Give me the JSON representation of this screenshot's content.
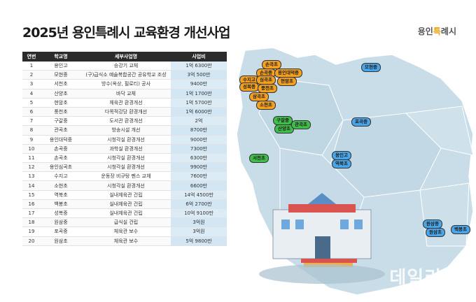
{
  "title": "2025년 용인특례시 교육환경 개선사업",
  "logo": {
    "part1": "용인",
    "part2": "특",
    "part3": "례시"
  },
  "table": {
    "headers": [
      "연번",
      "학교명",
      "세부사업명",
      "사업비"
    ],
    "rows": [
      [
        "1",
        "용인고",
        "승강기 교체",
        "1억 6300만"
      ],
      [
        "2",
        "모현중",
        "(구)급식소 예술복합공간 공유학교 조성",
        "3억 500만"
      ],
      [
        "3",
        "서천초",
        "방수(옥상, 필로티) 공사",
        "9400만"
      ],
      [
        "4",
        "산양초",
        "바닥 교체",
        "1억 1700만"
      ],
      [
        "5",
        "현암초",
        "체육관 환경개선",
        "1억 5700만"
      ],
      [
        "6",
        "풍천초",
        "다목적강당 환경개선",
        "1억 6000만"
      ],
      [
        "7",
        "구갈중",
        "도서관 환경개선",
        "2억"
      ],
      [
        "8",
        "관곡초",
        "방송시설 개선",
        "8700만"
      ],
      [
        "9",
        "용인대덕중",
        "시청각실 환경개선",
        "9000만"
      ],
      [
        "10",
        "손곡중",
        "과학실 환경개선",
        "7300만"
      ],
      [
        "11",
        "손곡초",
        "시청각실 환경개선",
        "6300만"
      ],
      [
        "12",
        "용인심곡초",
        "시청각실 환경개선",
        "9900만"
      ],
      [
        "13",
        "수지고",
        "운동장 비규탕 펜스 교체",
        "7600만"
      ],
      [
        "14",
        "소현초",
        "시청각실 환경개선",
        "6600만"
      ],
      [
        "15",
        "역북초",
        "실내체육관 건립",
        "14억 4500만"
      ],
      [
        "16",
        "백봉초",
        "실내체육관 건립",
        "6억 2700만"
      ],
      [
        "17",
        "성복중",
        "실내체육관 건립",
        "10억 9100만"
      ],
      [
        "18",
        "원삼중",
        "급식실 건립",
        "3억원"
      ],
      [
        "19",
        "포곡중",
        "체육관 보수",
        "3억원"
      ],
      [
        "20",
        "원삼초",
        "체육관 보수",
        "5억 9800만"
      ]
    ]
  },
  "map_labels": {
    "son_gok_cho": "손곡초",
    "son_gok_jung": "손곡중",
    "daedeok": "용인대덕중",
    "suji_go": "수지고",
    "simgok": "심곡초",
    "hyeonam": "현암초",
    "seongbok": "성복중",
    "pungcheon": "풍천초",
    "sanggok": "삼곡초",
    "sohyeon": "소현초",
    "guga_l": "구갈중",
    "sanyang": "산양초",
    "gwangok": "관곡초",
    "seocheon": "서천초",
    "mohyeon": "모현중",
    "pogok": "포곡중",
    "yongin_go": "용인고",
    "yeokbuk": "역북초",
    "wonsam_jung": "원삼중",
    "wonsam_cho": "원삼초",
    "baekbong": "백봉초"
  },
  "watermark": "데일리안",
  "colors": {
    "orange": "#f4a020",
    "green": "#3fbf4a",
    "blue": "#4aa6e8",
    "map": "#c9dde8"
  }
}
